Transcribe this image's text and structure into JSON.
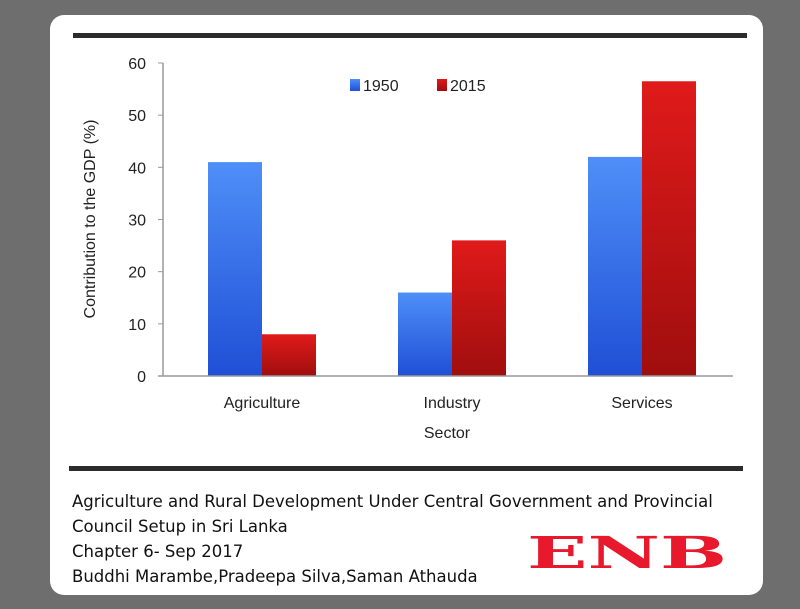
{
  "chart_data": {
    "type": "bar",
    "categories": [
      "Agriculture",
      "Industry",
      "Services"
    ],
    "series": [
      {
        "name": "1950",
        "values": [
          41,
          16,
          42
        ],
        "color": "#3f7ff0"
      },
      {
        "name": "2015",
        "values": [
          8,
          26,
          56.5
        ],
        "color": "#cc1414"
      }
    ],
    "xlabel": "Sector",
    "ylabel": "Contribution to the GDP (%)",
    "ylim": [
      0,
      60
    ],
    "yticks": [
      0,
      10,
      20,
      30,
      40,
      50,
      60
    ],
    "grid": false,
    "legend": "top-center"
  },
  "caption": {
    "line1": "Agriculture and Rural Development Under Central Government and Provincial",
    "line2": "Council Setup in Sri Lanka",
    "line3": "Chapter 6- Sep 2017",
    "line4": "Buddhi Marambe,Pradeepa Silva,Saman Athauda"
  },
  "logo": {
    "text": "ENB",
    "color": "#e8192c"
  }
}
